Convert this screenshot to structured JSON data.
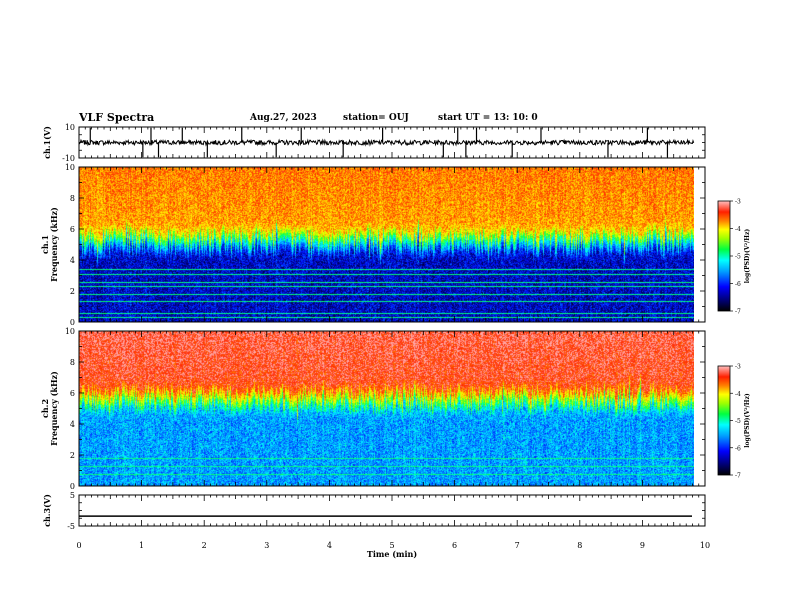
{
  "header": {
    "title": "VLF Spectra",
    "date": "Aug.27, 2023",
    "station": "station= OUJ",
    "start": "start  UT  =   13: 10: 0"
  },
  "colors": {
    "spectrogram_scale": [
      "#000060",
      "#0000ff",
      "#0080ff",
      "#00ffff",
      "#00ff60",
      "#80ff00",
      "#ffff00",
      "#ffa000",
      "#ff3000",
      "#ff8080"
    ]
  },
  "chart_data": [
    {
      "type": "line",
      "name": "channel-1-waveform",
      "ylabel": "ch.1(V)",
      "ylim": [
        -10,
        10
      ],
      "yticks": [
        "10",
        "-10"
      ],
      "xlim": [
        0,
        10
      ],
      "baseline": 0,
      "noise_amplitude_v": 1.5,
      "spikes_min": [
        0.18,
        1.02,
        1.15,
        1.27,
        1.65,
        2.05,
        2.6,
        3.15,
        3.55,
        4.22,
        4.85,
        5.82,
        6.05,
        6.18,
        6.35,
        6.92,
        7.38,
        8.45,
        9.08,
        9.4
      ]
    },
    {
      "type": "heatmap",
      "name": "channel-1-spectrogram",
      "ylabel": "ch.1\nFrequency (kHz)",
      "yticks": [
        "0",
        "2",
        "4",
        "6",
        "8",
        "10"
      ],
      "ylim": [
        0,
        10
      ],
      "xlim": [
        0,
        9.82
      ],
      "colorbar": {
        "label": "log(PSD)(V²/Hz)",
        "ticks": [
          "-3",
          "-4",
          "-5",
          "-6",
          "-7"
        ],
        "range": [
          -7,
          -3
        ]
      },
      "transition_khz": 4.8,
      "low_band_log_psd": -6.5,
      "high_band_log_psd": -3.8,
      "narrowband_lines_khz": [
        0.35,
        0.55,
        1.35,
        1.8,
        2.3,
        2.6,
        3.1,
        3.4
      ]
    },
    {
      "type": "heatmap",
      "name": "channel-2-spectrogram",
      "ylabel": "ch.2\nFrequency (kHz)",
      "yticks": [
        "0",
        "2",
        "4",
        "6",
        "8",
        "10"
      ],
      "ylim": [
        0,
        10
      ],
      "xlim": [
        0,
        9.82
      ],
      "colorbar": {
        "label": "log(PSD)(V²/Hz)",
        "ticks": [
          "-3",
          "-4",
          "-5",
          "-6",
          "-7"
        ],
        "range": [
          -7,
          -3
        ]
      },
      "transition_khz": 5.2,
      "low_band_log_psd": -5.7,
      "high_band_log_psd": -3.3,
      "narrowband_lines_khz": [
        0.8,
        1.3,
        1.8
      ]
    },
    {
      "type": "line",
      "name": "channel-3-waveform",
      "ylabel": "ch.3(V)",
      "ylim": [
        -5,
        5
      ],
      "yticks": [
        "5",
        "-5"
      ],
      "xlim": [
        0,
        10
      ],
      "constant_value_v": -1.8
    }
  ],
  "xaxis": {
    "label": "Time (min)",
    "ticks": [
      "0",
      "1",
      "2",
      "3",
      "4",
      "5",
      "6",
      "7",
      "8",
      "9",
      "10"
    ]
  }
}
